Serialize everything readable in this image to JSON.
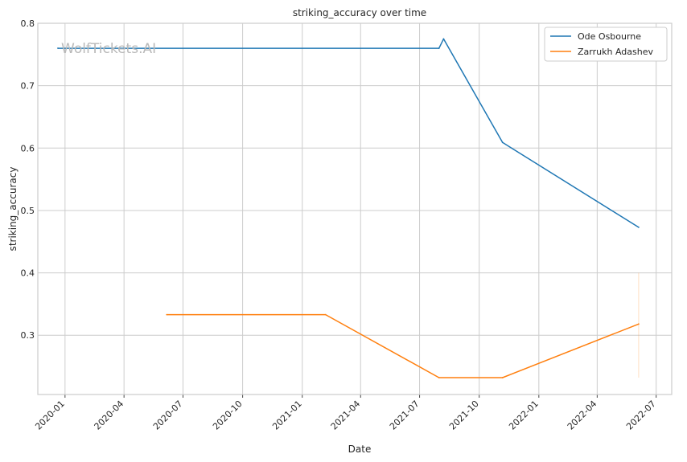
{
  "chart_data": {
    "type": "line",
    "title": "striking_accuracy over time",
    "xlabel": "Date",
    "ylabel": "striking_accuracy",
    "watermark": "WolfTickets.AI",
    "x_ticks": [
      "2020-01",
      "2020-04",
      "2020-07",
      "2020-10",
      "2021-01",
      "2021-04",
      "2021-07",
      "2021-10",
      "2022-01",
      "2022-04",
      "2022-07"
    ],
    "y_ticks": [
      "0.3",
      "0.4",
      "0.5",
      "0.6",
      "0.7",
      "0.8"
    ],
    "xlim": [
      "2019-11-20",
      "2022-07-25"
    ],
    "ylim": [
      0.205,
      0.8
    ],
    "grid": true,
    "legend_position": "top-right",
    "series": [
      {
        "name": "Ode Osbourne",
        "color": "#1f77b4",
        "points": [
          {
            "x": "2019-12-21",
            "y": 0.76
          },
          {
            "x": "2021-07-31",
            "y": 0.76
          },
          {
            "x": "2021-08-07",
            "y": 0.775
          },
          {
            "x": "2021-11-06",
            "y": 0.609
          },
          {
            "x": "2022-06-04",
            "y": 0.473
          }
        ]
      },
      {
        "name": "Zarrukh Adashev",
        "color": "#ff7f0e",
        "points": [
          {
            "x": "2020-06-06",
            "y": 0.333
          },
          {
            "x": "2021-02-06",
            "y": 0.333
          },
          {
            "x": "2021-07-31",
            "y": 0.232
          },
          {
            "x": "2021-11-06",
            "y": 0.232
          },
          {
            "x": "2022-06-04",
            "y": 0.318
          }
        ]
      }
    ]
  }
}
